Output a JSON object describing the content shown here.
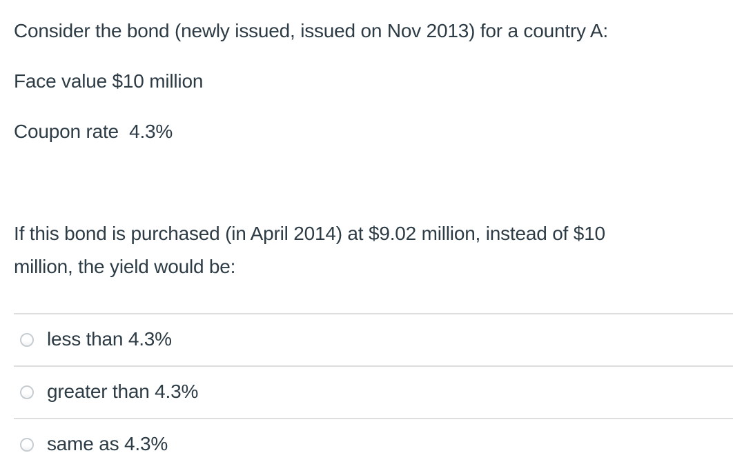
{
  "colors": {
    "text": "#2D3B45",
    "divider": "#dddddd",
    "radio_border": "#c6ccd0",
    "background": "#ffffff"
  },
  "question": {
    "intro": "Consider the bond (newly issued, issued on Nov 2013) for a country A:",
    "face_value": "Face value $10 million",
    "coupon_rate": "Coupon rate  4.3%",
    "prompt_lines": [
      "If this bond is purchased (in April 2014) at $9.02 million, instead of $10",
      "million, the yield would be:"
    ]
  },
  "answers": [
    {
      "label": "less than 4.3%",
      "selected": false
    },
    {
      "label": "greater than 4.3%",
      "selected": false
    },
    {
      "label": "same as 4.3%",
      "selected": false
    }
  ]
}
